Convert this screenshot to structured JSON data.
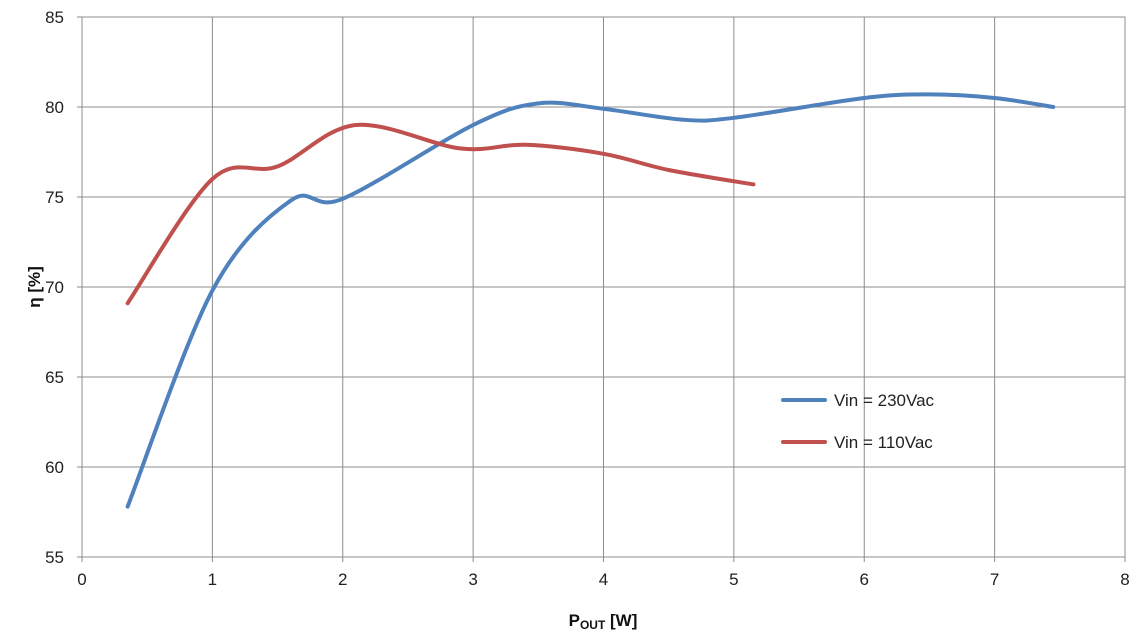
{
  "chart_data": {
    "type": "line",
    "xlabel_main": "P",
    "xlabel_sub": "OUT",
    "xlabel_unit": " [W]",
    "ylabel": "η [%]",
    "xlim": [
      0,
      8
    ],
    "ylim": [
      55,
      85
    ],
    "xticks": [
      "0",
      "1",
      "2",
      "3",
      "4",
      "5",
      "6",
      "7",
      "8"
    ],
    "yticks": [
      "55",
      "60",
      "65",
      "70",
      "75",
      "80",
      "85"
    ],
    "grid": true,
    "legend_position": "right-middle",
    "series": [
      {
        "name": "Vin = 230Vac",
        "color": "#4F81BD",
        "points": [
          [
            0.35,
            57.8
          ],
          [
            1.0,
            69.8
          ],
          [
            1.6,
            74.8
          ],
          [
            2.0,
            74.9
          ],
          [
            3.0,
            79.0
          ],
          [
            3.5,
            80.2
          ],
          [
            4.0,
            79.9
          ],
          [
            4.6,
            79.3
          ],
          [
            5.0,
            79.4
          ],
          [
            6.0,
            80.5
          ],
          [
            6.5,
            80.7
          ],
          [
            7.0,
            80.5
          ],
          [
            7.45,
            80.0
          ]
        ]
      },
      {
        "name": "Vin = 110Vac",
        "color": "#C0504D",
        "points": [
          [
            0.35,
            69.1
          ],
          [
            1.0,
            76.0
          ],
          [
            1.5,
            76.7
          ],
          [
            2.1,
            79.0
          ],
          [
            2.9,
            77.7
          ],
          [
            3.4,
            77.9
          ],
          [
            4.0,
            77.4
          ],
          [
            4.5,
            76.5
          ],
          [
            5.15,
            75.7
          ]
        ]
      }
    ]
  }
}
